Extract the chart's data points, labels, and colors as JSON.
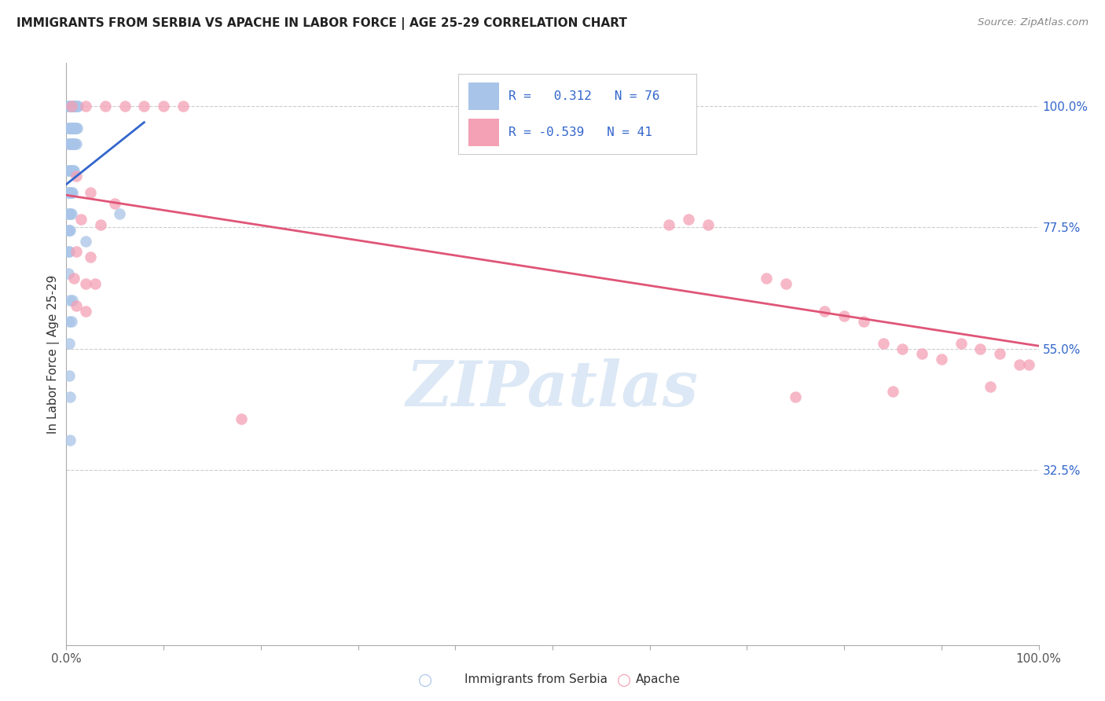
{
  "title": "IMMIGRANTS FROM SERBIA VS APACHE IN LABOR FORCE | AGE 25-29 CORRELATION CHART",
  "source": "Source: ZipAtlas.com",
  "ylabel": "In Labor Force | Age 25-29",
  "xlim": [
    0.0,
    1.0
  ],
  "ylim": [
    0.0,
    1.08
  ],
  "ytick_positions": [
    0.325,
    0.55,
    0.775,
    1.0
  ],
  "ytick_labels": [
    "32.5%",
    "55.0%",
    "77.5%",
    "100.0%"
  ],
  "grid_color": "#cccccc",
  "background_color": "#ffffff",
  "serbia_color": "#a8c4e8",
  "apache_color": "#f4a0b5",
  "serbia_line_color": "#3366cc",
  "apache_line_color": "#e05577",
  "serbia_scatter_x": [
    0.002,
    0.003,
    0.004,
    0.005,
    0.006,
    0.007,
    0.008,
    0.009,
    0.01,
    0.011,
    0.012,
    0.002,
    0.003,
    0.004,
    0.005,
    0.006,
    0.007,
    0.008,
    0.009,
    0.01,
    0.011,
    0.002,
    0.003,
    0.004,
    0.005,
    0.006,
    0.007,
    0.008,
    0.009,
    0.01,
    0.002,
    0.003,
    0.004,
    0.005,
    0.006,
    0.007,
    0.008,
    0.002,
    0.003,
    0.004,
    0.005,
    0.006,
    0.002,
    0.003,
    0.004,
    0.005,
    0.002,
    0.003,
    0.004,
    0.002,
    0.003,
    0.002,
    0.004,
    0.006,
    0.003,
    0.005,
    0.003,
    0.003,
    0.004,
    0.004,
    0.055,
    0.02
  ],
  "serbia_scatter_y": [
    1.0,
    1.0,
    1.0,
    1.0,
    1.0,
    1.0,
    1.0,
    1.0,
    1.0,
    1.0,
    1.0,
    0.96,
    0.96,
    0.96,
    0.96,
    0.96,
    0.96,
    0.96,
    0.96,
    0.96,
    0.96,
    0.93,
    0.93,
    0.93,
    0.93,
    0.93,
    0.93,
    0.93,
    0.93,
    0.93,
    0.88,
    0.88,
    0.88,
    0.88,
    0.88,
    0.88,
    0.88,
    0.84,
    0.84,
    0.84,
    0.84,
    0.84,
    0.8,
    0.8,
    0.8,
    0.8,
    0.77,
    0.77,
    0.77,
    0.73,
    0.73,
    0.69,
    0.64,
    0.64,
    0.6,
    0.6,
    0.56,
    0.5,
    0.46,
    0.38,
    0.8,
    0.75
  ],
  "apache_scatter_x": [
    0.005,
    0.02,
    0.04,
    0.06,
    0.08,
    0.1,
    0.12,
    0.01,
    0.025,
    0.05,
    0.015,
    0.035,
    0.01,
    0.025,
    0.008,
    0.02,
    0.03,
    0.01,
    0.02,
    0.18,
    0.62,
    0.64,
    0.66,
    0.72,
    0.74,
    0.78,
    0.8,
    0.82,
    0.84,
    0.86,
    0.88,
    0.9,
    0.92,
    0.94,
    0.96,
    0.98,
    0.99,
    0.75,
    0.85,
    0.95
  ],
  "apache_scatter_y": [
    1.0,
    1.0,
    1.0,
    1.0,
    1.0,
    1.0,
    1.0,
    0.87,
    0.84,
    0.82,
    0.79,
    0.78,
    0.73,
    0.72,
    0.68,
    0.67,
    0.67,
    0.63,
    0.62,
    0.42,
    0.78,
    0.79,
    0.78,
    0.68,
    0.67,
    0.62,
    0.61,
    0.6,
    0.56,
    0.55,
    0.54,
    0.53,
    0.56,
    0.55,
    0.54,
    0.52,
    0.52,
    0.46,
    0.47,
    0.48
  ],
  "serbia_trend_x": [
    0.0,
    0.08
  ],
  "serbia_trend_y": [
    0.855,
    0.97
  ],
  "apache_trend_x": [
    0.0,
    1.0
  ],
  "apache_trend_y": [
    0.835,
    0.555
  ]
}
